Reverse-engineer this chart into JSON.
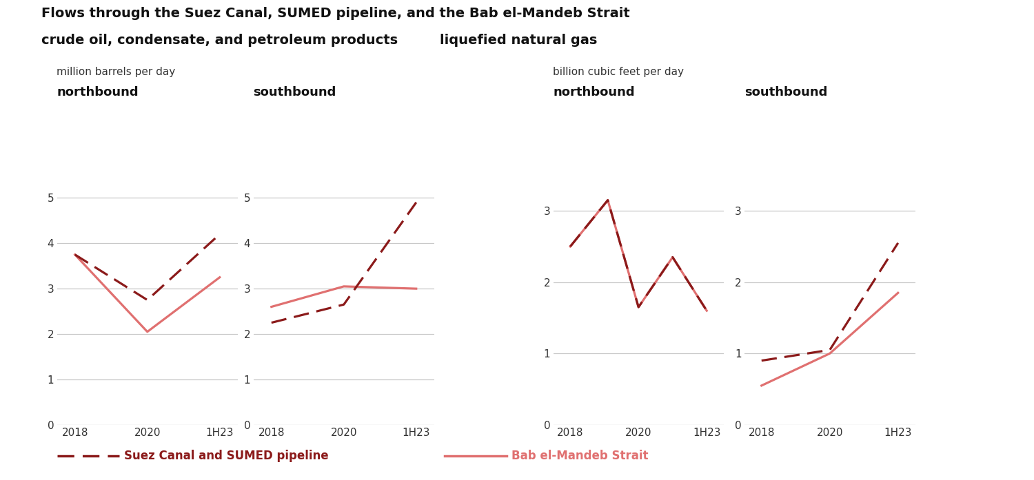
{
  "title_line1": "Flows through the Suez Canal, SUMED pipeline, and the Bab el-Mandeb Strait",
  "title_line2a": "crude oil, condensate, and petroleum products",
  "title_line2b": "liquefied natural gas",
  "subtitle_left": "million barrels per day",
  "subtitle_right": "billion cubic feet per day",
  "x_labels": [
    "2018",
    "2020",
    "1H23"
  ],
  "oil_north_suez": [
    3.75,
    2.75,
    4.2
  ],
  "oil_north_bab": [
    3.75,
    2.05,
    3.25
  ],
  "oil_south_suez": [
    2.25,
    2.65,
    4.9
  ],
  "oil_south_bab": [
    2.6,
    3.05,
    3.0
  ],
  "lng_north_suez_x": [
    0,
    0.5,
    1.0,
    1.5,
    2.0
  ],
  "lng_north_suez_y": [
    2.5,
    3.15,
    1.65,
    2.35,
    1.6
  ],
  "lng_north_bab_x": [
    0,
    0.5,
    1.0,
    1.5,
    2.0
  ],
  "lng_north_bab_y": [
    2.5,
    3.15,
    1.65,
    2.35,
    1.6
  ],
  "lng_south_suez": [
    0.9,
    1.05,
    2.55
  ],
  "lng_south_bab": [
    0.55,
    1.0,
    1.85
  ],
  "color_suez": "#8B1A1A",
  "color_bab": "#E07070",
  "bg_color": "#FFFFFF",
  "grid_color": "#C8C8C8",
  "oil_ylim": [
    0,
    5.5
  ],
  "oil_yticks": [
    0,
    1,
    2,
    3,
    4,
    5
  ],
  "lng_ylim": [
    0,
    3.5
  ],
  "lng_yticks": [
    0,
    1,
    2,
    3
  ],
  "legend_suez": "Suez Canal and SUMED pipeline",
  "legend_bab": "Bab el-Mandeb Strait"
}
